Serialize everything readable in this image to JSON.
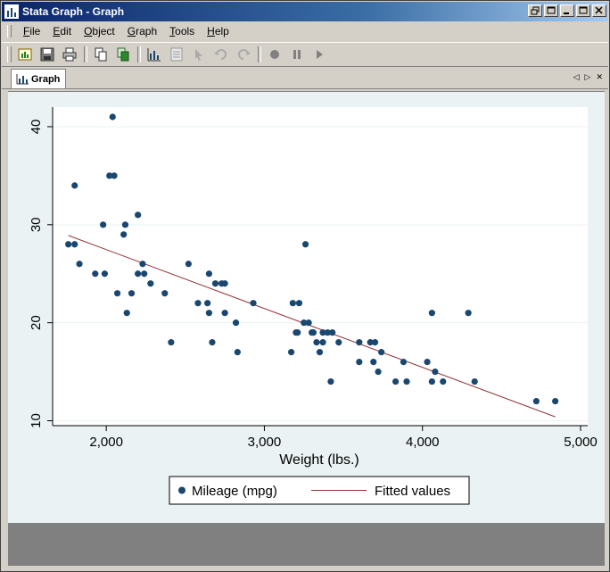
{
  "window": {
    "title": "Stata Graph - Graph",
    "buttons": [
      "restore-down",
      "maximize",
      "minimize",
      "restore",
      "close"
    ]
  },
  "menu": {
    "items": [
      {
        "label": "File",
        "underline": "F",
        "rest": "ile"
      },
      {
        "label": "Edit",
        "underline": "E",
        "rest": "dit"
      },
      {
        "label": "Object",
        "underline": "O",
        "rest": "bject"
      },
      {
        "label": "Graph",
        "underline": "G",
        "rest": "raph"
      },
      {
        "label": "Tools",
        "underline": "T",
        "rest": "ools"
      },
      {
        "label": "Help",
        "underline": "H",
        "rest": "elp"
      }
    ]
  },
  "toolbar": {
    "icons": [
      "open-graph-icon",
      "save-icon",
      "print-icon",
      "copy-icon",
      "copy-special-icon",
      "graph-editor-icon",
      "data-browser-icon",
      "pointer-icon",
      "undo-icon",
      "redo-icon",
      "record-icon",
      "pause-icon",
      "play-icon"
    ]
  },
  "tab": {
    "label": "Graph",
    "nav_left": "◁",
    "nav_right": "▷",
    "nav_close": "✕"
  },
  "colors": {
    "marker": "#1a476f",
    "fit_line": "#90353b",
    "plot_bg": "#ffffff",
    "graph_bg": "#eaf2f3"
  },
  "chart_data": {
    "type": "scatter",
    "xlabel": "Weight (lbs.)",
    "ylabel": "",
    "xlim": [
      1700,
      5000
    ],
    "ylim": [
      9.5,
      42
    ],
    "xticks": [
      2000,
      3000,
      4000,
      5000
    ],
    "xtick_labels": [
      "2,000",
      "3,000",
      "4,000",
      "5,000"
    ],
    "yticks": [
      10,
      20,
      30,
      40
    ],
    "ytick_labels": [
      "10",
      "20",
      "30",
      "40"
    ],
    "grid": true,
    "legend_position": "bottom",
    "series": [
      {
        "name": "Mileage (mpg)",
        "kind": "scatter",
        "points": [
          [
            2040,
            41
          ],
          [
            1800,
            34
          ],
          [
            2020,
            35
          ],
          [
            2050,
            35
          ],
          [
            1760,
            28
          ],
          [
            1800,
            28
          ],
          [
            1830,
            26
          ],
          [
            1930,
            25
          ],
          [
            1990,
            25
          ],
          [
            1980,
            30
          ],
          [
            2120,
            30
          ],
          [
            2110,
            29
          ],
          [
            2200,
            31
          ],
          [
            2070,
            23
          ],
          [
            2130,
            21
          ],
          [
            2160,
            23
          ],
          [
            2200,
            25
          ],
          [
            2230,
            26
          ],
          [
            2240,
            25
          ],
          [
            2280,
            24
          ],
          [
            2370,
            23
          ],
          [
            2410,
            18
          ],
          [
            2520,
            26
          ],
          [
            2580,
            22
          ],
          [
            2640,
            22
          ],
          [
            2650,
            25
          ],
          [
            2650,
            21
          ],
          [
            2670,
            18
          ],
          [
            2690,
            24
          ],
          [
            2730,
            24
          ],
          [
            2750,
            24
          ],
          [
            2750,
            21
          ],
          [
            2820,
            20
          ],
          [
            2830,
            17
          ],
          [
            2930,
            22
          ],
          [
            3170,
            17
          ],
          [
            3180,
            22
          ],
          [
            3200,
            19
          ],
          [
            3210,
            19
          ],
          [
            3220,
            22
          ],
          [
            3250,
            20
          ],
          [
            3260,
            28
          ],
          [
            3280,
            20
          ],
          [
            3300,
            19
          ],
          [
            3310,
            19
          ],
          [
            3330,
            18
          ],
          [
            3350,
            17
          ],
          [
            3370,
            18
          ],
          [
            3370,
            19
          ],
          [
            3400,
            19
          ],
          [
            3420,
            14
          ],
          [
            3430,
            19
          ],
          [
            3470,
            18
          ],
          [
            3600,
            18
          ],
          [
            3600,
            16
          ],
          [
            3670,
            18
          ],
          [
            3690,
            16
          ],
          [
            3700,
            18
          ],
          [
            3720,
            15
          ],
          [
            3740,
            17
          ],
          [
            3830,
            14
          ],
          [
            3880,
            16
          ],
          [
            3900,
            14
          ],
          [
            4030,
            16
          ],
          [
            4060,
            21
          ],
          [
            4060,
            14
          ],
          [
            4080,
            15
          ],
          [
            4130,
            14
          ],
          [
            4290,
            21
          ],
          [
            4330,
            14
          ],
          [
            4720,
            12
          ],
          [
            4840,
            12
          ]
        ]
      },
      {
        "name": "Fitted values",
        "kind": "line",
        "points": [
          [
            1760,
            28.9
          ],
          [
            4840,
            10.4
          ]
        ]
      }
    ]
  }
}
